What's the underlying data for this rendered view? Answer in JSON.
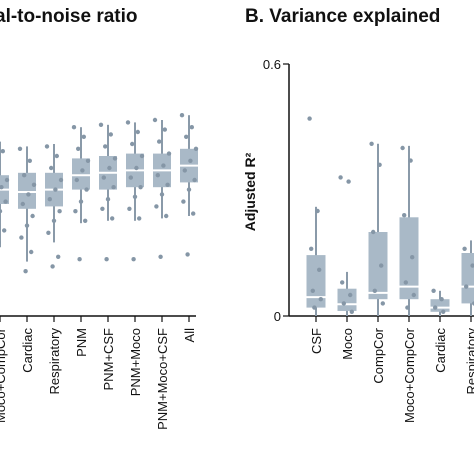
{
  "chart_data": [
    {
      "type": "box",
      "title": "al-to-noise ratio",
      "categories": [
        "Moco+CompCor",
        "Cardiac",
        "Respiratory",
        "PNM",
        "PNM+CSF",
        "PNM+Moco",
        "PNM+Moco+CSF",
        "All"
      ],
      "boxes": [
        {
          "q1": 0.4,
          "median": 0.46,
          "q3": 0.52,
          "whisker_low": 0.22,
          "whisker_high": 0.66
        },
        {
          "q1": 0.38,
          "median": 0.45,
          "q3": 0.53,
          "whisker_low": 0.16,
          "whisker_high": 0.64
        },
        {
          "q1": 0.39,
          "median": 0.46,
          "q3": 0.53,
          "whisker_low": 0.24,
          "whisker_high": 0.65
        },
        {
          "q1": 0.46,
          "median": 0.52,
          "q3": 0.59,
          "whisker_low": 0.32,
          "whisker_high": 0.72
        },
        {
          "q1": 0.46,
          "median": 0.53,
          "q3": 0.6,
          "whisker_low": 0.33,
          "whisker_high": 0.73
        },
        {
          "q1": 0.47,
          "median": 0.54,
          "q3": 0.61,
          "whisker_low": 0.33,
          "whisker_high": 0.74
        },
        {
          "q1": 0.47,
          "median": 0.54,
          "q3": 0.61,
          "whisker_low": 0.34,
          "whisker_high": 0.75
        },
        {
          "q1": 0.49,
          "median": 0.56,
          "q3": 0.63,
          "whisker_low": 0.35,
          "whisker_high": 0.77
        }
      ],
      "points": [
        [
          0.65,
          0.62,
          0.57,
          0.5,
          0.47,
          0.44,
          0.41,
          0.37,
          0.33,
          0.29,
          0.24
        ],
        [
          0.63,
          0.58,
          0.52,
          0.48,
          0.44,
          0.4,
          0.35,
          0.31,
          0.26,
          0.2,
          0.12
        ],
        [
          0.64,
          0.6,
          0.55,
          0.5,
          0.46,
          0.42,
          0.37,
          0.33,
          0.28,
          0.18,
          0.14
        ],
        [
          0.72,
          0.68,
          0.63,
          0.58,
          0.54,
          0.5,
          0.46,
          0.41,
          0.37,
          0.33,
          0.17
        ],
        [
          0.73,
          0.69,
          0.64,
          0.59,
          0.55,
          0.51,
          0.47,
          0.42,
          0.38,
          0.34,
          0.17
        ],
        [
          0.74,
          0.7,
          0.65,
          0.6,
          0.55,
          0.51,
          0.47,
          0.43,
          0.38,
          0.34,
          0.17
        ],
        [
          0.75,
          0.71,
          0.66,
          0.61,
          0.56,
          0.52,
          0.48,
          0.44,
          0.39,
          0.35,
          0.18
        ],
        [
          0.77,
          0.72,
          0.68,
          0.63,
          0.58,
          0.54,
          0.5,
          0.46,
          0.41,
          0.36,
          0.19
        ]
      ],
      "ylim": [
        0,
        1
      ],
      "grid": false
    },
    {
      "type": "box",
      "title": "B. Variance explained",
      "ylabel": "Adjusted R²",
      "yticks": [
        "0",
        "0.6"
      ],
      "ylim": [
        0,
        0.6
      ],
      "categories": [
        "CSF",
        "Moco",
        "CompCor",
        "Moco+CompCor",
        "Cardiac",
        "Respiratory"
      ],
      "boxes": [
        {
          "q1": 0.02,
          "median": 0.045,
          "q3": 0.145,
          "whisker_low": 0.0,
          "whisker_high": 0.26
        },
        {
          "q1": 0.012,
          "median": 0.028,
          "q3": 0.065,
          "whisker_low": 0.0,
          "whisker_high": 0.105
        },
        {
          "q1": 0.04,
          "median": 0.055,
          "q3": 0.2,
          "whisker_low": 0.0,
          "whisker_high": 0.41
        },
        {
          "q1": 0.04,
          "median": 0.07,
          "q3": 0.235,
          "whisker_low": 0.0,
          "whisker_high": 0.405
        },
        {
          "q1": 0.01,
          "median": 0.02,
          "q3": 0.04,
          "whisker_low": 0.0,
          "whisker_high": 0.06
        },
        {
          "q1": 0.03,
          "median": 0.07,
          "q3": 0.15,
          "whisker_low": 0.0,
          "whisker_high": 0.18
        }
      ],
      "points": [
        [
          0.47,
          0.25,
          0.16,
          0.11,
          0.06,
          0.04,
          0.02
        ],
        [
          0.33,
          0.32,
          0.08,
          0.05,
          0.03,
          0.01
        ],
        [
          0.41,
          0.36,
          0.2,
          0.12,
          0.06,
          0.03
        ],
        [
          0.4,
          0.37,
          0.24,
          0.14,
          0.08,
          0.05,
          0.02
        ],
        [
          0.06,
          0.04,
          0.02,
          0.01
        ],
        [
          0.16,
          0.12,
          0.07,
          0.03
        ]
      ],
      "grid": false
    }
  ]
}
